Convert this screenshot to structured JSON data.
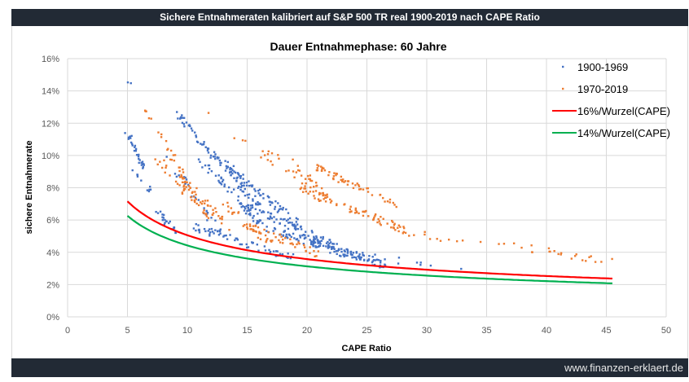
{
  "header": {
    "title": "Sichere Entnahmeraten kalibriert auf S&P 500 TR real 1900-2019 nach CAPE Ratio"
  },
  "footer": {
    "text": "www.finanzen-erklaert.de"
  },
  "chart_data": {
    "type": "scatter",
    "title": "Dauer Entnahmephase: 60 Jahre",
    "xlabel": "CAPE Ratio",
    "ylabel": "sichere Entnahmerate",
    "xlim": [
      0,
      50
    ],
    "ylim": [
      0,
      16
    ],
    "x_ticks": [
      "0",
      "5",
      "10",
      "15",
      "20",
      "25",
      "30",
      "35",
      "40",
      "45",
      "50"
    ],
    "y_ticks": [
      "0%",
      "2%",
      "4%",
      "6%",
      "8%",
      "10%",
      "12%",
      "14%",
      "16%"
    ],
    "grid": true,
    "legend_position": "top-right",
    "series": [
      {
        "name": "1900-1969",
        "kind": "points",
        "color": "#4472c4",
        "bands": [
          {
            "x": [
              5.0,
              5.2
            ],
            "y": [
              14.6,
              14.4
            ],
            "n": 2
          },
          {
            "x": [
              4.9,
              6.4
            ],
            "y": [
              11.5,
              9.3
            ],
            "n": 28
          },
          {
            "x": [
              5.5,
              7.0
            ],
            "y": [
              9.0,
              7.6
            ],
            "n": 10
          },
          {
            "x": [
              7.5,
              9.5
            ],
            "y": [
              6.5,
              4.9
            ],
            "n": 22
          },
          {
            "x": [
              8.2,
              13.0
            ],
            "y": [
              10.0,
              5.0
            ],
            "n": 30
          },
          {
            "x": [
              9.3,
              16.0
            ],
            "y": [
              12.5,
              6.8
            ],
            "n": 80
          },
          {
            "x": [
              11.0,
              16.5
            ],
            "y": [
              9.8,
              5.4
            ],
            "n": 55
          },
          {
            "x": [
              13.0,
              19.5
            ],
            "y": [
              9.6,
              5.6
            ],
            "n": 70
          },
          {
            "x": [
              14.5,
              22.5
            ],
            "y": [
              7.0,
              4.4
            ],
            "n": 85
          },
          {
            "x": [
              10.5,
              19.0
            ],
            "y": [
              5.6,
              3.6
            ],
            "n": 60
          },
          {
            "x": [
              17.0,
              26.0
            ],
            "y": [
              5.4,
              3.4
            ],
            "n": 90
          },
          {
            "x": [
              20.0,
              26.5
            ],
            "y": [
              4.6,
              3.2
            ],
            "n": 50
          },
          {
            "x": [
              25.0,
              34.0
            ],
            "y": [
              3.8,
              2.8
            ],
            "n": 12
          }
        ]
      },
      {
        "name": "1970-2019",
        "kind": "points",
        "color": "#ed7d31",
        "bands": [
          {
            "x": [
              6.5,
              10.5
            ],
            "y": [
              12.9,
              7.5
            ],
            "n": 30
          },
          {
            "x": [
              7.5,
              12.0
            ],
            "y": [
              9.8,
              6.0
            ],
            "n": 35
          },
          {
            "x": [
              9.0,
              13.5
            ],
            "y": [
              9.0,
              5.6
            ],
            "n": 35
          },
          {
            "x": [
              12.0,
              12.2
            ],
            "y": [
              12.7,
              12.6
            ],
            "n": 1
          },
          {
            "x": [
              13.0,
              17.0
            ],
            "y": [
              7.0,
              4.6
            ],
            "n": 30
          },
          {
            "x": [
              14.5,
              21.0
            ],
            "y": [
              5.8,
              3.9
            ],
            "n": 40
          },
          {
            "x": [
              14.0,
              20.0
            ],
            "y": [
              11.2,
              8.0
            ],
            "n": 14
          },
          {
            "x": [
              16.5,
              22.0
            ],
            "y": [
              10.3,
              7.3
            ],
            "n": 18
          },
          {
            "x": [
              18.5,
              21.5
            ],
            "y": [
              9.9,
              7.4
            ],
            "n": 20
          },
          {
            "x": [
              20.5,
              27.5
            ],
            "y": [
              9.3,
              6.9
            ],
            "n": 55
          },
          {
            "x": [
              19.5,
              27.5
            ],
            "y": [
              7.8,
              5.6
            ],
            "n": 60
          },
          {
            "x": [
              25.5,
              29.0
            ],
            "y": [
              6.0,
              5.2
            ],
            "n": 10
          },
          {
            "x": [
              28.0,
              35.0
            ],
            "y": [
              5.3,
              4.4
            ],
            "n": 14
          },
          {
            "x": [
              36.0,
              41.5
            ],
            "y": [
              4.5,
              3.9
            ],
            "n": 12
          },
          {
            "x": [
              40.0,
              45.5
            ],
            "y": [
              3.9,
              3.5
            ],
            "n": 12
          }
        ]
      },
      {
        "name": "16%/Wurzel(CAPE)",
        "kind": "line",
        "color": "#ff0000",
        "formula": "0.16/sqrt(CAPE)",
        "x_range": [
          5,
          45.5
        ]
      },
      {
        "name": "14%/Wurzel(CAPE)",
        "kind": "line",
        "color": "#00b050",
        "formula": "0.14/sqrt(CAPE)",
        "x_range": [
          5,
          45.5
        ]
      }
    ]
  }
}
